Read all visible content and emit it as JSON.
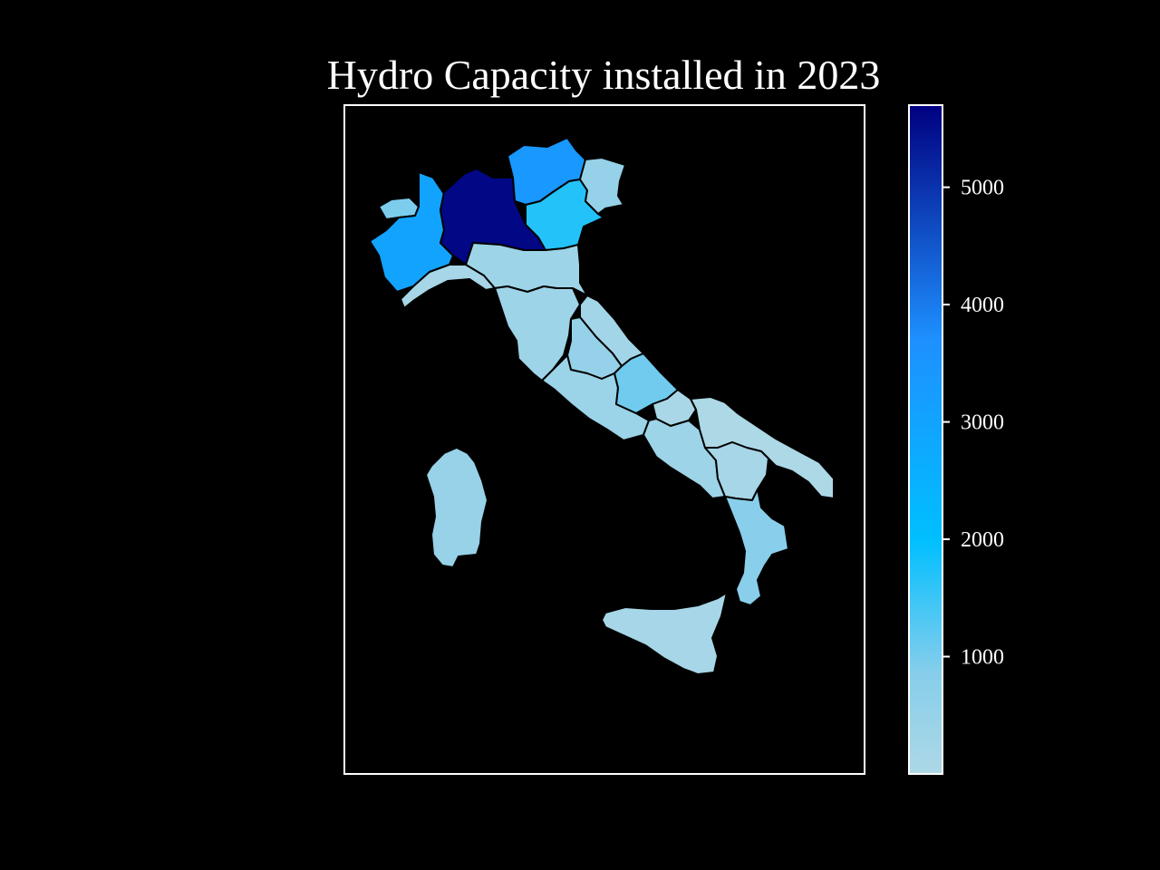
{
  "title": "Hydro Capacity installed in 2023",
  "colorbar": {
    "ticks": [
      5000,
      4000,
      3000,
      2000,
      1000
    ],
    "tick_labels": [
      "5000",
      "4000",
      "3000",
      "2000",
      "1000"
    ],
    "range": [
      0,
      5700
    ],
    "colors": [
      "#add8e6",
      "#87ceeb",
      "#00bfff",
      "#1e90ff",
      "#000080"
    ]
  },
  "regions": [
    {
      "name": "Valle d'Aosta",
      "value": 950
    },
    {
      "name": "Piemonte",
      "value": 3000
    },
    {
      "name": "Lombardia",
      "value": 5600
    },
    {
      "name": "Trentino-Alto Adige",
      "value": 3400
    },
    {
      "name": "Veneto",
      "value": 1700
    },
    {
      "name": "Friuli-Venezia Giulia",
      "value": 550
    },
    {
      "name": "Liguria",
      "value": 150
    },
    {
      "name": "Emilia-Romagna",
      "value": 350
    },
    {
      "name": "Toscana",
      "value": 350
    },
    {
      "name": "Marche",
      "value": 250
    },
    {
      "name": "Umbria",
      "value": 550
    },
    {
      "name": "Lazio",
      "value": 400
    },
    {
      "name": "Abruzzo",
      "value": 1050
    },
    {
      "name": "Molise",
      "value": 100
    },
    {
      "name": "Campania",
      "value": 350
    },
    {
      "name": "Puglia",
      "value": 5
    },
    {
      "name": "Basilicata",
      "value": 150
    },
    {
      "name": "Calabria",
      "value": 800
    },
    {
      "name": "Sicilia",
      "value": 150
    },
    {
      "name": "Sardegna",
      "value": 500
    }
  ]
}
